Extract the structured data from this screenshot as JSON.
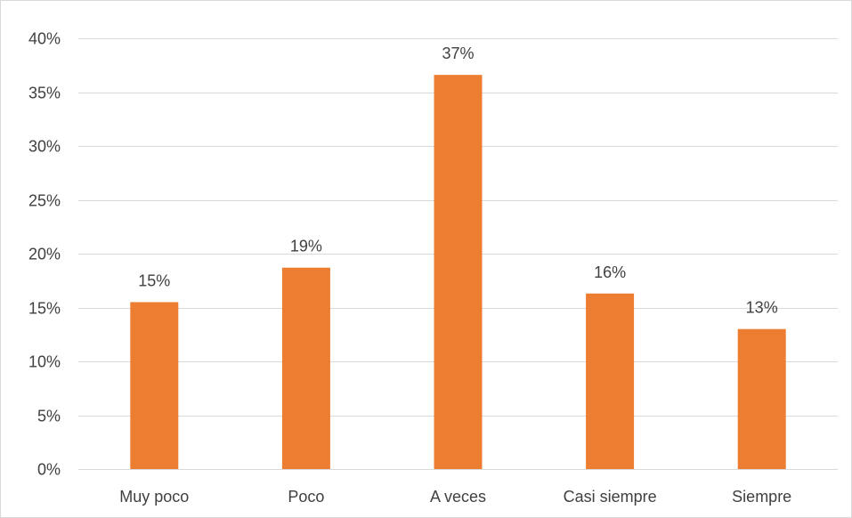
{
  "chart_data": {
    "type": "bar",
    "categories": [
      "Muy poco",
      "Poco",
      "A veces",
      "Casi siempre",
      "Siempre"
    ],
    "values": [
      15.5,
      18.7,
      36.6,
      16.3,
      13.0
    ],
    "data_labels": [
      "15%",
      "19%",
      "37%",
      "16%",
      "13%"
    ],
    "title": "",
    "xlabel": "",
    "ylabel": "",
    "ylim": [
      0,
      40
    ],
    "y_ticks": [
      0,
      5,
      10,
      15,
      20,
      25,
      30,
      35,
      40
    ],
    "y_tick_labels": [
      "0%",
      "5%",
      "10%",
      "15%",
      "20%",
      "25%",
      "30%",
      "35%",
      "40%"
    ],
    "grid": true,
    "legend": "none",
    "bar_color": "#ED7D31",
    "grid_color": "#d9d9d9",
    "text_color": "#404040"
  }
}
